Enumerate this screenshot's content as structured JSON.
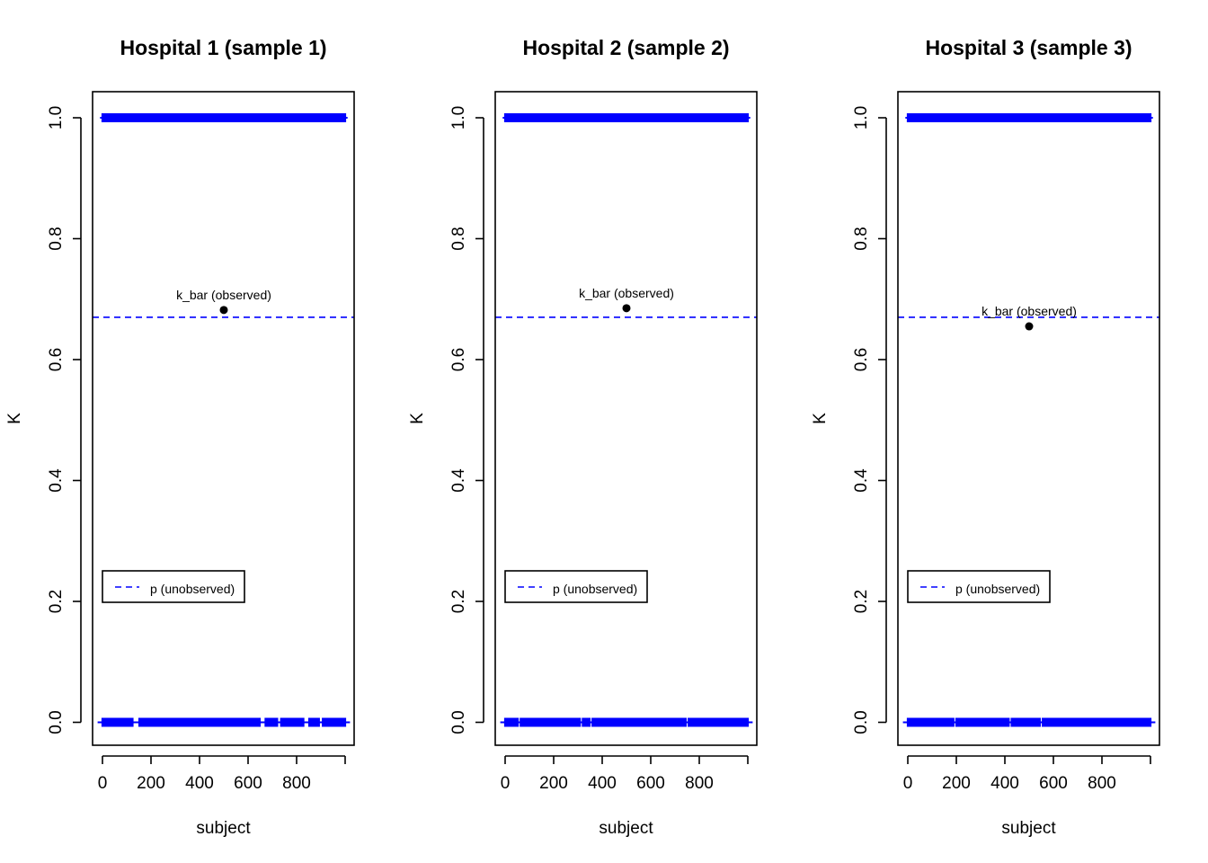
{
  "chart_data": [
    {
      "type": "scatter",
      "title": "Hospital 1 (sample 1)",
      "xlabel": "subject",
      "ylabel": "K",
      "xlim": [
        0,
        1000
      ],
      "ylim": [
        0,
        1
      ],
      "x_ticks": [
        "0",
        "200",
        "400",
        "600",
        "800"
      ],
      "y_ticks": [
        "0.0",
        "0.2",
        "0.4",
        "0.6",
        "0.8",
        "1.0"
      ],
      "p_line": 0.67,
      "k_bar": {
        "x": 500,
        "y": 0.682,
        "label": "k_bar (observed)"
      },
      "legend": {
        "label": "p (unobserved)",
        "position": "bottom-left"
      },
      "rug_colour": "#0000ff",
      "rug_values": [
        0,
        1
      ],
      "zero_gaps": [
        [
          128,
          150
        ],
        [
          650,
          668
        ],
        [
          722,
          733
        ],
        [
          832,
          848
        ],
        [
          895,
          905
        ]
      ]
    },
    {
      "type": "scatter",
      "title": "Hospital 2 (sample 2)",
      "xlabel": "subject",
      "ylabel": "K",
      "xlim": [
        0,
        1000
      ],
      "ylim": [
        0,
        1
      ],
      "x_ticks": [
        "0",
        "200",
        "400",
        "600",
        "800"
      ],
      "y_ticks": [
        "0.0",
        "0.2",
        "0.4",
        "0.6",
        "0.8",
        "1.0"
      ],
      "p_line": 0.67,
      "k_bar": {
        "x": 500,
        "y": 0.685,
        "label": "k_bar (observed)"
      },
      "legend": {
        "label": "p (unobserved)",
        "position": "bottom-left"
      },
      "rug_colour": "#0000ff",
      "rug_values": [
        0,
        1
      ],
      "zero_gaps": [
        [
          55,
          62
        ],
        [
          310,
          318
        ],
        [
          350,
          356
        ],
        [
          745,
          752
        ]
      ]
    },
    {
      "type": "scatter",
      "title": "Hospital 3 (sample 3)",
      "xlabel": "subject",
      "ylabel": "K",
      "xlim": [
        0,
        1000
      ],
      "ylim": [
        0,
        1
      ],
      "x_ticks": [
        "0",
        "200",
        "400",
        "600",
        "800"
      ],
      "y_ticks": [
        "0.0",
        "0.2",
        "0.4",
        "0.6",
        "0.8",
        "1.0"
      ],
      "p_line": 0.67,
      "k_bar": {
        "x": 500,
        "y": 0.655,
        "label": "k_bar (observed)"
      },
      "legend": {
        "label": "p (unobserved)",
        "position": "bottom-left"
      },
      "rug_colour": "#0000ff",
      "rug_values": [
        0,
        1
      ],
      "zero_gaps": [
        [
          190,
          196
        ],
        [
          420,
          426
        ],
        [
          545,
          552
        ]
      ]
    }
  ]
}
